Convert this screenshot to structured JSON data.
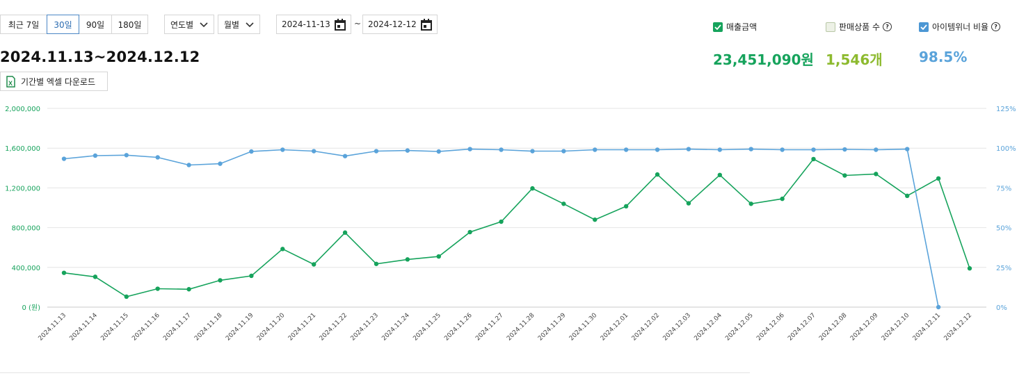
{
  "period_buttons": [
    {
      "label": "최근 7일",
      "active": false
    },
    {
      "label": "30일",
      "active": true
    },
    {
      "label": "90일",
      "active": false
    },
    {
      "label": "180일",
      "active": false
    }
  ],
  "dropdowns": {
    "by_year": "연도별",
    "by_month": "월별"
  },
  "date_range": {
    "start": "2024-11-13",
    "separator": "~",
    "end": "2024-12-12"
  },
  "title": "2024.11.13~2024.12.12",
  "excel_download": "기간별 엑셀 다운로드",
  "metrics": [
    {
      "label": "매출금액",
      "checked": true,
      "value": "23,451,090원",
      "color": "#16a35c",
      "help": false
    },
    {
      "label": "판매상품 수",
      "checked": false,
      "value": "1,546개",
      "color": "#8dba2f",
      "help": true
    },
    {
      "label": "아이템위너 비율",
      "checked": true,
      "value": "98.5%",
      "color": "#5aa3da",
      "help": true
    }
  ],
  "chart_data": {
    "type": "line",
    "x": [
      "2024.11.13",
      "2024.11.14",
      "2024.11.15",
      "2024.11.16",
      "2024.11.17",
      "2024.11.18",
      "2024.11.19",
      "2024.11.20",
      "2024.11.21",
      "2024.11.22",
      "2024.11.23",
      "2024.11.24",
      "2024.11.25",
      "2024.11.26",
      "2024.11.27",
      "2024.11.28",
      "2024.11.29",
      "2024.11.30",
      "2024.12.01",
      "2024.12.02",
      "2024.12.03",
      "2024.12.04",
      "2024.12.05",
      "2024.12.06",
      "2024.12.07",
      "2024.12.08",
      "2024.12.09",
      "2024.12.10",
      "2024.12.11",
      "2024.12.12"
    ],
    "series": [
      {
        "axis": "left",
        "color": "#16a35c",
        "values": [
          345000,
          305000,
          105000,
          185000,
          180000,
          270000,
          315000,
          585000,
          430000,
          750000,
          435000,
          480000,
          510000,
          755000,
          860000,
          1195000,
          1040000,
          880000,
          1015000,
          1335000,
          1045000,
          1330000,
          1040000,
          1090000,
          1490000,
          1325000,
          1340000,
          1120000,
          1295000,
          390000
        ]
      },
      {
        "axis": "right",
        "color": "#5aa3da",
        "values": [
          93.3,
          95.3,
          95.6,
          94.2,
          89.4,
          90.2,
          97.9,
          99.0,
          98.1,
          95.0,
          98.1,
          98.5,
          97.9,
          99.4,
          99.0,
          98.1,
          98.1,
          99.0,
          99.0,
          99.0,
          99.4,
          99.0,
          99.4,
          99.0,
          99.0,
          99.2,
          99.0,
          99.4,
          0,
          null
        ]
      }
    ],
    "y_left": {
      "ticks": [
        "0 (원)",
        "400,000",
        "800,000",
        "1,200,000",
        "1,600,000",
        "2,000,000"
      ],
      "range": [
        0,
        2000000
      ]
    },
    "y_right": {
      "ticks": [
        "0%",
        "25%",
        "50%",
        "75%",
        "100%",
        "125%"
      ],
      "range": [
        0,
        125
      ]
    },
    "grid": true
  }
}
